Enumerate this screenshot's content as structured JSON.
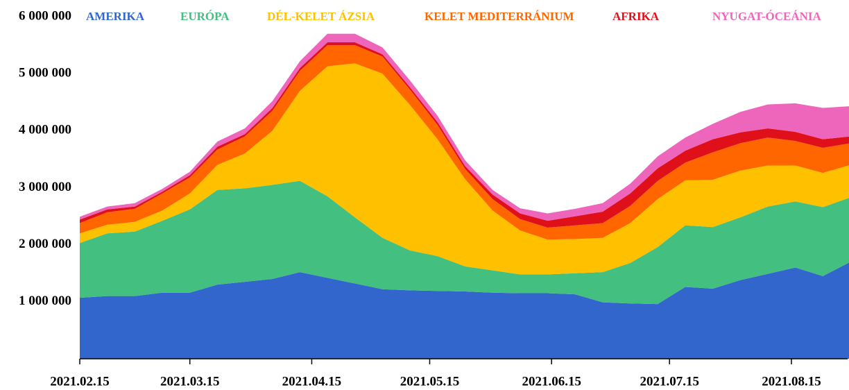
{
  "chart_data": {
    "type": "stacked_area",
    "x": [
      "2021.02.15",
      "2021.02.22",
      "2021.03.01",
      "2021.03.08",
      "2021.03.15",
      "2021.03.22",
      "2021.03.29",
      "2021.04.05",
      "2021.04.12",
      "2021.04.19",
      "2021.04.26",
      "2021.05.03",
      "2021.05.10",
      "2021.05.17",
      "2021.05.24",
      "2021.05.31",
      "2021.06.07",
      "2021.06.14",
      "2021.06.21",
      "2021.06.28",
      "2021.07.05",
      "2021.07.12",
      "2021.07.19",
      "2021.07.26",
      "2021.08.02",
      "2021.08.09",
      "2021.08.16",
      "2021.08.23",
      "2021.08.30"
    ],
    "xlim": [
      "2021.02.15",
      "2021.08.30"
    ],
    "xticks": [
      "2021.02.15",
      "2021.03.15",
      "2021.04.15",
      "2021.05.15",
      "2021.06.15",
      "2021.07.15",
      "2021.08.15"
    ],
    "ylim": [
      0,
      6000000
    ],
    "yticks": [
      {
        "value": 1000000,
        "label": "1 000 000"
      },
      {
        "value": 2000000,
        "label": "2 000 000"
      },
      {
        "value": 3000000,
        "label": "3 000 000"
      },
      {
        "value": 4000000,
        "label": "4 000 000"
      },
      {
        "value": 5000000,
        "label": "5 000 000"
      },
      {
        "value": 6000000,
        "label": "6 000 000"
      }
    ],
    "legend": "top",
    "series": [
      {
        "name": "AMERIKA",
        "color": "#3366cc",
        "values": [
          1070000,
          1100000,
          1100000,
          1160000,
          1160000,
          1300000,
          1350000,
          1400000,
          1520000,
          1420000,
          1320000,
          1220000,
          1200000,
          1190000,
          1180000,
          1160000,
          1150000,
          1150000,
          1130000,
          990000,
          970000,
          960000,
          1260000,
          1230000,
          1380000,
          1490000,
          1600000,
          1450000,
          1700000
        ]
      },
      {
        "name": "EURÓPA",
        "color": "#43bf7f",
        "values": [
          960000,
          1100000,
          1130000,
          1260000,
          1460000,
          1660000,
          1640000,
          1650000,
          1600000,
          1430000,
          1160000,
          900000,
          700000,
          610000,
          440000,
          390000,
          330000,
          330000,
          370000,
          530000,
          710000,
          1000000,
          1080000,
          1080000,
          1100000,
          1180000,
          1160000,
          1210000,
          1130000
        ]
      },
      {
        "name": "DÉL-KELET ÁZSIA",
        "color": "#ffc000",
        "values": [
          170000,
          150000,
          170000,
          180000,
          280000,
          440000,
          610000,
          950000,
          1580000,
          2280000,
          2700000,
          2880000,
          2550000,
          2050000,
          1530000,
          1050000,
          770000,
          610000,
          600000,
          600000,
          700000,
          840000,
          790000,
          830000,
          820000,
          720000,
          630000,
          600000,
          570000
        ]
      },
      {
        "name": "KELET MEDITERRÁNIUM",
        "color": "#ff6600",
        "values": [
          180000,
          220000,
          230000,
          300000,
          280000,
          270000,
          300000,
          350000,
          350000,
          370000,
          320000,
          300000,
          270000,
          250000,
          180000,
          200000,
          200000,
          210000,
          240000,
          260000,
          300000,
          320000,
          310000,
          480000,
          480000,
          490000,
          430000,
          440000,
          380000
        ]
      },
      {
        "name": "AFRIKA",
        "color": "#e0101a",
        "values": [
          60000,
          50000,
          40000,
          30000,
          40000,
          50000,
          40000,
          50000,
          50000,
          50000,
          50000,
          40000,
          40000,
          50000,
          50000,
          80000,
          100000,
          120000,
          160000,
          200000,
          220000,
          220000,
          210000,
          230000,
          190000,
          160000,
          160000,
          150000,
          120000
        ]
      },
      {
        "name": "NYUGAT-ÓCEÁNIA",
        "color": "#ee66bb",
        "values": [
          50000,
          50000,
          60000,
          50000,
          60000,
          90000,
          100000,
          120000,
          120000,
          150000,
          150000,
          120000,
          120000,
          110000,
          100000,
          80000,
          90000,
          130000,
          130000,
          150000,
          170000,
          210000,
          230000,
          270000,
          360000,
          420000,
          500000,
          550000,
          530000
        ]
      }
    ]
  }
}
